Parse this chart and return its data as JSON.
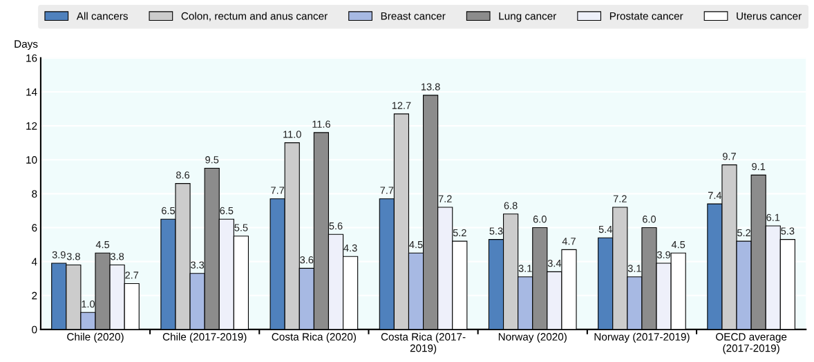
{
  "chart_data": {
    "type": "bar",
    "ylabel": "Days",
    "categories": [
      "Chile (2020)",
      "Chile (2017-2019)",
      "Costa Rica (2020)",
      "Costa Rica (2017-\n2019)",
      "Norway (2020)",
      "Norway (2017-2019)",
      "OECD average\n(2017-2019)"
    ],
    "series": [
      {
        "name": "All cancers",
        "color": "#4f81bd",
        "values": [
          3.9,
          6.5,
          7.7,
          7.7,
          5.3,
          5.4,
          7.4
        ],
        "value_labels": [
          "3.9",
          "6.5",
          "7.7",
          "7.7",
          "5.3",
          "5.4",
          "7.4"
        ]
      },
      {
        "name": "Colon, rectum and anus cancer",
        "color": "#cccccc",
        "values": [
          3.8,
          8.6,
          11.0,
          12.7,
          6.8,
          7.2,
          9.7
        ],
        "value_labels": [
          "3.8",
          "8.6",
          "11.0",
          "12.7",
          "6.8",
          "7.2",
          "9.7"
        ]
      },
      {
        "name": "Breast cancer",
        "color": "#a7b9e3",
        "values": [
          1.0,
          3.3,
          3.6,
          4.5,
          3.1,
          3.1,
          5.2
        ],
        "value_labels": [
          "1.0",
          "3.3",
          "3.6",
          "4.5",
          "3.1",
          "3.1",
          "5.2"
        ]
      },
      {
        "name": "Lung cancer",
        "color": "#8c8c8c",
        "values": [
          4.5,
          9.5,
          11.6,
          13.8,
          6.0,
          6.0,
          9.1
        ],
        "value_labels": [
          "4.5",
          "9.5",
          "11.6",
          "13.8",
          "6.0",
          "6.0",
          "9.1"
        ]
      },
      {
        "name": "Prostate cancer",
        "color": "#eef0fa",
        "values": [
          3.8,
          6.5,
          5.6,
          7.2,
          3.4,
          3.9,
          6.1
        ],
        "value_labels": [
          "3.8",
          "6.5",
          "5.6",
          "7.2",
          "3.4",
          "3.9",
          "6.1"
        ]
      },
      {
        "name": "Uterus cancer",
        "color": "#ffffff",
        "values": [
          2.7,
          5.5,
          4.3,
          5.2,
          4.7,
          4.5,
          5.3
        ],
        "value_labels": [
          "2.7",
          "5.5",
          "4.3",
          "5.2",
          "4.7",
          "4.5",
          "5.3"
        ]
      }
    ],
    "ylim": [
      0,
      16
    ],
    "yticks": [
      0,
      2,
      4,
      6,
      8,
      10,
      12,
      14,
      16
    ],
    "grid": "y",
    "legend": "top"
  }
}
